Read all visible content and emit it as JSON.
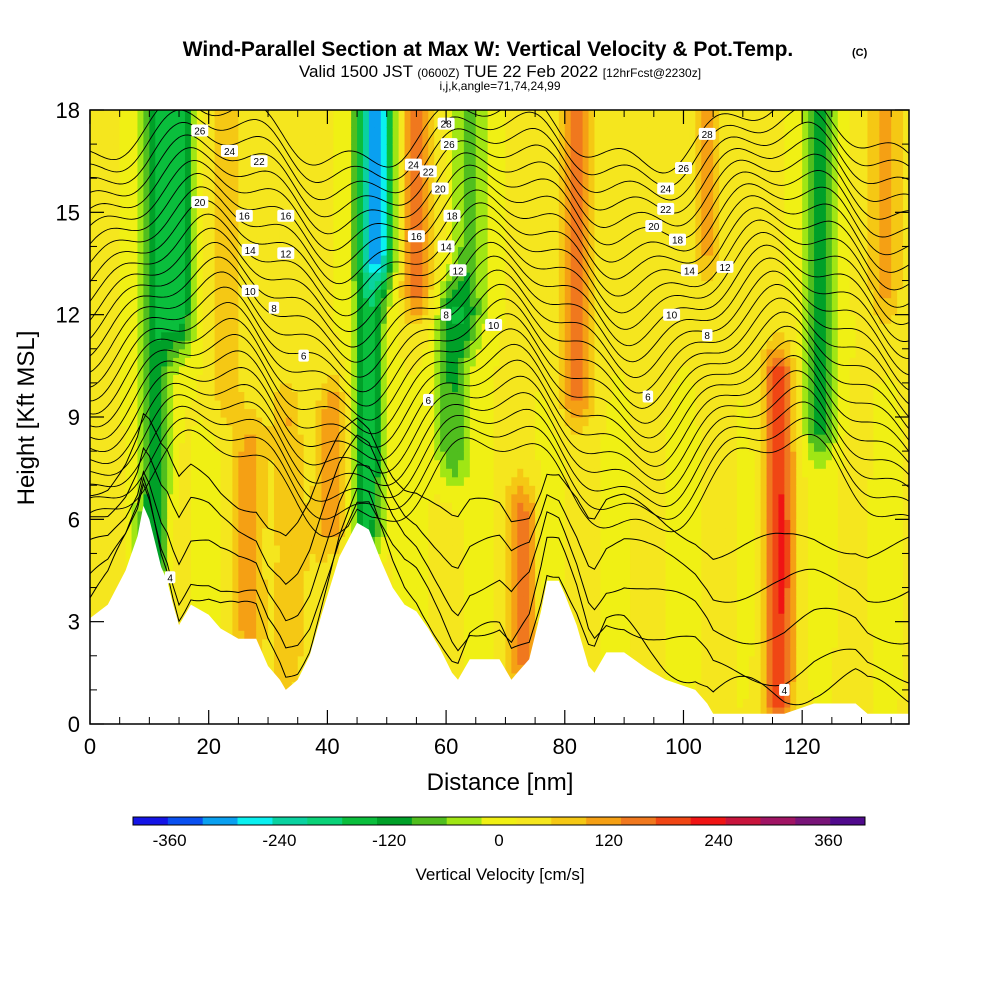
{
  "chart_data": {
    "type": "heatmap",
    "title": "Wind-Parallel Section at Max W: Vertical Velocity & Pot.Temp.",
    "copyright": "(C)",
    "subtitle": {
      "part1": "Valid 1500 JST ",
      "part2": "(0600Z)",
      "part3": " TUE 22 Feb 2022 ",
      "part4": "[12hrFcst@2230z]"
    },
    "subtitle2": "i,j,k,angle=71,74,24,99",
    "xlabel": "Distance [nm]",
    "ylabel": "Height [Kft MSL]",
    "xlim": [
      0,
      138
    ],
    "ylim": [
      0,
      18
    ],
    "x_ticks": [
      "0",
      "20",
      "40",
      "60",
      "80",
      "100",
      "120"
    ],
    "y_ticks": [
      "0",
      "3",
      "6",
      "9",
      "12",
      "15",
      "18"
    ],
    "colorbar": {
      "label": "Vertical Velocity [cm/s]",
      "ticks": [
        "-360",
        "-240",
        "-120",
        "0",
        "120",
        "240",
        "360"
      ],
      "range": [
        -400,
        400
      ],
      "colors": [
        "#1414e6",
        "#0a50f0",
        "#0aa0f0",
        "#0af0f0",
        "#0ad2a0",
        "#0ad278",
        "#0abe3c",
        "#00a028",
        "#50be1e",
        "#a0e614",
        "#f0f014",
        "#f5e61e",
        "#f5c814",
        "#f5a014",
        "#f0781e",
        "#f04614",
        "#f01414",
        "#c8143c",
        "#a01464",
        "#781478",
        "#500a8c"
      ]
    },
    "vertical_velocity_cm_s": {
      "background": 20,
      "features": [
        {
          "x": 11,
          "z_min": 5,
          "z_max": 18,
          "w": -140
        },
        {
          "x": 15,
          "z_min": 12,
          "z_max": 18,
          "w": -160
        },
        {
          "x": 23,
          "z_min": 10,
          "z_max": 18,
          "w": 70
        },
        {
          "x": 27,
          "z_min": 3,
          "z_max": 8,
          "w": 90
        },
        {
          "x": 33,
          "z_min": 2,
          "z_max": 9,
          "w": 80
        },
        {
          "x": 41,
          "z_min": 6,
          "z_max": 9,
          "w": 110
        },
        {
          "x": 47,
          "z_min": 6,
          "z_max": 18,
          "w": -180
        },
        {
          "x": 49,
          "z_min": 14,
          "z_max": 18,
          "w": -220
        },
        {
          "x": 55,
          "z_min": 13,
          "z_max": 18,
          "w": 140
        },
        {
          "x": 61,
          "z_min": 8,
          "z_max": 12,
          "w": -120
        },
        {
          "x": 64,
          "z_min": 12,
          "z_max": 18,
          "w": -100
        },
        {
          "x": 73,
          "z_min": 2,
          "z_max": 6,
          "w": 120
        },
        {
          "x": 82,
          "z_min": 10,
          "z_max": 18,
          "w": 150
        },
        {
          "x": 104,
          "z_min": 14,
          "z_max": 18,
          "w": 80
        },
        {
          "x": 116,
          "z_min": 1,
          "z_max": 10,
          "w": 180
        },
        {
          "x": 123,
          "z_min": 9,
          "z_max": 18,
          "w": -140
        },
        {
          "x": 134,
          "z_min": 13,
          "z_max": 18,
          "w": 100
        }
      ]
    },
    "potential_temperature_labels": [
      "4",
      "4",
      "6",
      "6",
      "6",
      "8",
      "8",
      "8",
      "10",
      "10",
      "10",
      "12",
      "12",
      "12",
      "14",
      "14",
      "14",
      "16",
      "16",
      "16",
      "18",
      "18",
      "20",
      "20",
      "20",
      "22",
      "22",
      "22",
      "24",
      "24",
      "24",
      "26",
      "26",
      "26",
      "28",
      "28"
    ],
    "terrain_kft": [
      [
        0,
        3.1
      ],
      [
        3,
        3.5
      ],
      [
        6,
        4.5
      ],
      [
        8,
        5.5
      ],
      [
        9,
        6.4
      ],
      [
        10,
        6.0
      ],
      [
        11,
        5.3
      ],
      [
        12,
        4.6
      ],
      [
        13,
        4.2
      ],
      [
        14,
        3.5
      ],
      [
        15,
        2.9
      ],
      [
        17,
        3.5
      ],
      [
        20,
        3.2
      ],
      [
        22,
        2.8
      ],
      [
        25,
        2.5
      ],
      [
        28,
        2.5
      ],
      [
        30,
        1.7
      ],
      [
        32,
        1.3
      ],
      [
        33,
        1.0
      ],
      [
        35,
        1.3
      ],
      [
        37,
        2.0
      ],
      [
        39,
        3.2
      ],
      [
        42,
        4.9
      ],
      [
        45,
        5.9
      ],
      [
        47,
        5.7
      ],
      [
        49,
        4.8
      ],
      [
        51,
        4.0
      ],
      [
        53,
        3.5
      ],
      [
        55,
        3.3
      ],
      [
        57,
        2.8
      ],
      [
        59,
        2.2
      ],
      [
        61,
        1.5
      ],
      [
        62,
        1.3
      ],
      [
        64,
        1.9
      ],
      [
        69,
        1.9
      ],
      [
        71,
        1.3
      ],
      [
        72,
        1.5
      ],
      [
        74,
        1.9
      ],
      [
        76,
        3.3
      ],
      [
        77,
        4.2
      ],
      [
        79,
        4.2
      ],
      [
        80,
        3.8
      ],
      [
        82,
        2.9
      ],
      [
        84,
        1.7
      ],
      [
        85,
        1.5
      ],
      [
        87,
        2.1
      ],
      [
        90,
        2.1
      ],
      [
        94,
        1.6
      ],
      [
        97,
        1.3
      ],
      [
        102,
        1.0
      ],
      [
        104,
        0.6
      ],
      [
        105,
        0.3
      ],
      [
        117,
        0.3
      ],
      [
        122,
        0.6
      ],
      [
        129,
        0.6
      ],
      [
        131,
        0.3
      ],
      [
        137,
        0.3
      ],
      [
        138,
        0.3
      ]
    ]
  }
}
